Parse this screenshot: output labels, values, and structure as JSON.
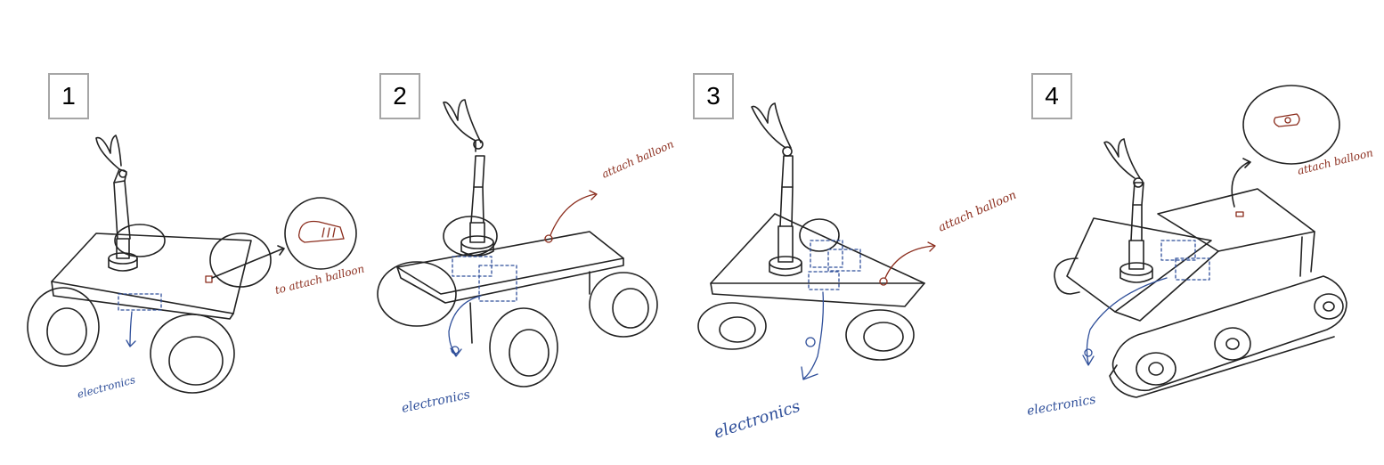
{
  "panels": [
    {
      "number": "1",
      "annotations": {
        "balloon": "to attach balloon",
        "electronics": "electronics"
      }
    },
    {
      "number": "2",
      "annotations": {
        "balloon": "attach balloon",
        "electronics": "electronics"
      }
    },
    {
      "number": "3",
      "annotations": {
        "balloon": "attach balloon",
        "electronics": "electronics"
      }
    },
    {
      "number": "4",
      "annotations": {
        "balloon": "attach balloon",
        "electronics": "electronics"
      }
    }
  ],
  "colors": {
    "ink": "#222222",
    "electronics": "#2f4f9a",
    "balloon": "#8b2d1d",
    "box_border": "#a6a6a6"
  }
}
